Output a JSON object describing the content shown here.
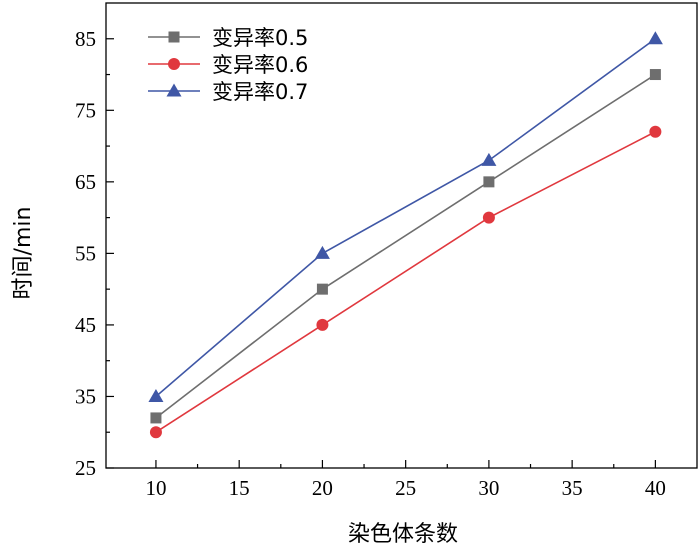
{
  "chart_data": {
    "type": "line",
    "xlabel": "染色体条数",
    "ylabel": "时间/min",
    "x_ticks": [
      10,
      15,
      20,
      25,
      30,
      35,
      40
    ],
    "y_ticks": [
      25,
      35,
      45,
      55,
      65,
      75,
      85
    ],
    "xlim": [
      7,
      42.5
    ],
    "ylim": [
      25,
      90
    ],
    "grid": false,
    "legend_position": "top-left",
    "x": [
      10,
      20,
      30,
      40
    ],
    "series": [
      {
        "name": "变异率0.5",
        "values": [
          32,
          50,
          65,
          80
        ],
        "color": "#6e6e6e",
        "marker": "square"
      },
      {
        "name": "变异率0.6",
        "values": [
          30,
          45,
          60,
          72
        ],
        "color": "#e0383e",
        "marker": "circle"
      },
      {
        "name": "变异率0.7",
        "values": [
          35,
          55,
          68,
          85
        ],
        "color": "#3f57a6",
        "marker": "triangle"
      }
    ]
  }
}
